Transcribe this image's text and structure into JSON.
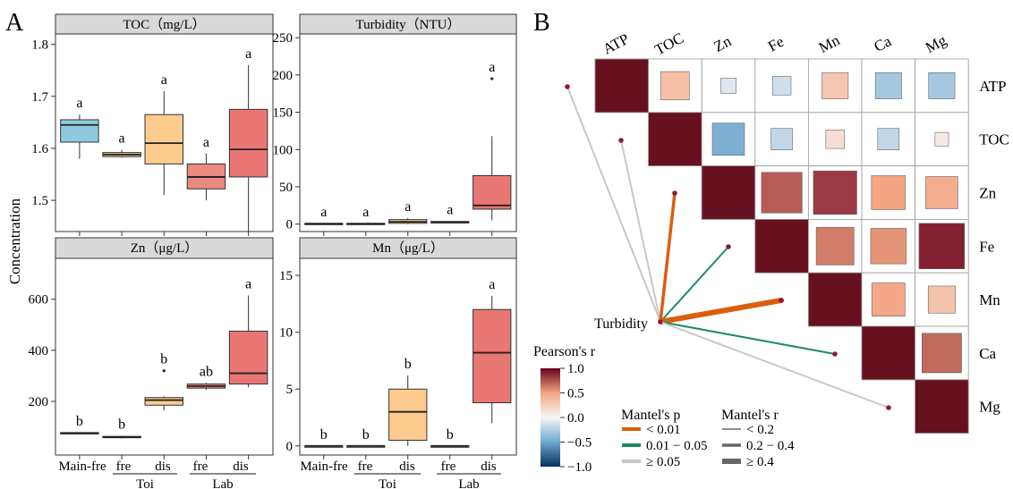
{
  "chart_data": [
    {
      "type": "boxplot",
      "panel": "A",
      "title": "TOC（mg/L）",
      "ylabel": "Concentration",
      "ylim": [
        1.44,
        1.82
      ],
      "yticks": [
        1.5,
        1.6,
        1.7,
        1.8
      ],
      "categories": [
        "Main-fre",
        "Toi fre",
        "Toi dis",
        "Lab fre",
        "Lab dis"
      ],
      "boxes": [
        {
          "min": 1.58,
          "q1": 1.612,
          "median": 1.645,
          "q3": 1.655,
          "max": 1.665,
          "color": "#8fc9df",
          "letter": "a",
          "outliers": []
        },
        {
          "min": 1.582,
          "q1": 1.584,
          "median": 1.588,
          "q3": 1.592,
          "max": 1.597,
          "color": "#f6d398",
          "letter": "a",
          "outliers": []
        },
        {
          "min": 1.51,
          "q1": 1.57,
          "median": 1.61,
          "q3": 1.665,
          "max": 1.71,
          "color": "#fdcb8e",
          "letter": "a",
          "outliers": []
        },
        {
          "min": 1.5,
          "q1": 1.522,
          "median": 1.545,
          "q3": 1.57,
          "max": 1.59,
          "color": "#eb8a80",
          "letter": "a",
          "outliers": []
        },
        {
          "min": 1.44,
          "q1": 1.545,
          "median": 1.598,
          "q3": 1.675,
          "max": 1.76,
          "color": "#e87773",
          "letter": "a",
          "outliers": []
        }
      ]
    },
    {
      "type": "boxplot",
      "panel": "A",
      "title": "Turbidity（NTU）",
      "ylim": [
        -10,
        255
      ],
      "yticks": [
        0,
        50,
        100,
        150,
        200,
        250
      ],
      "categories": [
        "Main-fre",
        "Toi fre",
        "Toi dis",
        "Lab fre",
        "Lab dis"
      ],
      "boxes": [
        {
          "min": 0,
          "q1": 0,
          "median": 0.5,
          "q3": 1,
          "max": 1,
          "color": "#8fc9df",
          "letter": "a",
          "outliers": []
        },
        {
          "min": 0,
          "q1": 0,
          "median": 0.5,
          "q3": 1,
          "max": 1,
          "color": "#f6d398",
          "letter": "a",
          "outliers": []
        },
        {
          "min": 0,
          "q1": 1,
          "median": 3,
          "q3": 6,
          "max": 8,
          "color": "#fdcb8e",
          "letter": "a",
          "outliers": []
        },
        {
          "min": 1,
          "q1": 1.5,
          "median": 2.5,
          "q3": 3.5,
          "max": 4,
          "color": "#eb8a80",
          "letter": "a",
          "outliers": []
        },
        {
          "min": 5,
          "q1": 20,
          "median": 25,
          "q3": 65,
          "max": 118,
          "color": "#e87773",
          "letter": "a",
          "outliers": [
            195
          ]
        }
      ]
    },
    {
      "type": "boxplot",
      "panel": "A",
      "title": "Zn（μg/L）",
      "ylim": [
        -10,
        760
      ],
      "yticks": [
        200,
        400,
        600
      ],
      "categories": [
        "Main-fre",
        "Toi fre",
        "Toi dis",
        "Lab fre",
        "Lab dis"
      ],
      "boxes": [
        {
          "min": 75,
          "q1": 75,
          "median": 75,
          "q3": 78,
          "max": 78,
          "color": "#8fc9df",
          "letter": "b",
          "outliers": []
        },
        {
          "min": 55,
          "q1": 58,
          "median": 60,
          "q3": 63,
          "max": 65,
          "color": "#f6d398",
          "letter": "b",
          "outliers": []
        },
        {
          "min": 165,
          "q1": 185,
          "median": 205,
          "q3": 215,
          "max": 220,
          "color": "#fdcb8e",
          "letter": "b",
          "outliers": [
            320
          ]
        },
        {
          "min": 245,
          "q1": 252,
          "median": 260,
          "q3": 268,
          "max": 272,
          "color": "#eb8a80",
          "letter": "ab",
          "outliers": []
        },
        {
          "min": 255,
          "q1": 268,
          "median": 310,
          "q3": 475,
          "max": 615,
          "color": "#e87773",
          "letter": "a",
          "outliers": []
        }
      ]
    },
    {
      "type": "boxplot",
      "panel": "A",
      "title": "Mn（μg/L）",
      "ylim": [
        -0.8,
        16.5
      ],
      "yticks": [
        0,
        5,
        10,
        15
      ],
      "categories": [
        "Main-fre",
        "Toi fre",
        "Toi dis",
        "Lab fre",
        "Lab dis"
      ],
      "boxes": [
        {
          "min": 0,
          "q1": 0,
          "median": 0,
          "q3": 0,
          "max": 0,
          "color": "#8fc9df",
          "letter": "b",
          "outliers": []
        },
        {
          "min": 0,
          "q1": 0,
          "median": 0,
          "q3": 0,
          "max": 0,
          "color": "#f6d398",
          "letter": "b",
          "outliers": []
        },
        {
          "min": 0,
          "q1": 0.5,
          "median": 3,
          "q3": 5,
          "max": 6.2,
          "color": "#fdcb8e",
          "letter": "b",
          "outliers": []
        },
        {
          "min": 0,
          "q1": 0,
          "median": 0,
          "q3": 0,
          "max": 0,
          "color": "#eb8a80",
          "letter": "b",
          "outliers": []
        },
        {
          "min": 2,
          "q1": 3.8,
          "median": 8.2,
          "q3": 12,
          "max": 13.2,
          "color": "#e87773",
          "letter": "a",
          "outliers": []
        }
      ]
    },
    {
      "type": "heatmap",
      "panel": "B",
      "variables": [
        "ATP",
        "TOC",
        "Zn",
        "Fe",
        "Mn",
        "Ca",
        "Mg"
      ],
      "pearson_upper": [
        {
          "row": "ATP",
          "col": "TOC",
          "r": 0.35
        },
        {
          "row": "ATP",
          "col": "Zn",
          "r": -0.1
        },
        {
          "row": "ATP",
          "col": "Fe",
          "r": -0.15
        },
        {
          "row": "ATP",
          "col": "Mn",
          "r": 0.3
        },
        {
          "row": "ATP",
          "col": "Ca",
          "r": -0.3
        },
        {
          "row": "ATP",
          "col": "Mg",
          "r": -0.3
        },
        {
          "row": "TOC",
          "col": "Zn",
          "r": -0.45
        },
        {
          "row": "TOC",
          "col": "Fe",
          "r": -0.2
        },
        {
          "row": "TOC",
          "col": "Mn",
          "r": 0.15
        },
        {
          "row": "TOC",
          "col": "Ca",
          "r": -0.2
        },
        {
          "row": "TOC",
          "col": "Mg",
          "r": 0.08
        },
        {
          "row": "Zn",
          "col": "Fe",
          "r": 0.72
        },
        {
          "row": "Zn",
          "col": "Mn",
          "r": 0.82
        },
        {
          "row": "Zn",
          "col": "Ca",
          "r": 0.5
        },
        {
          "row": "Zn",
          "col": "Mg",
          "r": 0.45
        },
        {
          "row": "Fe",
          "col": "Mn",
          "r": 0.62
        },
        {
          "row": "Fe",
          "col": "Ca",
          "r": 0.55
        },
        {
          "row": "Fe",
          "col": "Mg",
          "r": 0.9
        },
        {
          "row": "Mn",
          "col": "Ca",
          "r": 0.48
        },
        {
          "row": "Mn",
          "col": "Mg",
          "r": 0.32
        },
        {
          "row": "Ca",
          "col": "Mg",
          "r": 0.68
        }
      ],
      "mantel_source": "Turbidity",
      "mantel_links": [
        {
          "target": "ATP",
          "p": ">=0.05",
          "r": "<0.2"
        },
        {
          "target": "TOC",
          "p": ">=0.05",
          "r": "<0.2"
        },
        {
          "target": "Zn",
          "p": "<0.01",
          "r": "0.2-0.4"
        },
        {
          "target": "Fe",
          "p": "0.01-0.05",
          "r": "<0.2"
        },
        {
          "target": "Mn",
          "p": "<0.01",
          "r": ">=0.4"
        },
        {
          "target": "Ca",
          "p": "0.01-0.05",
          "r": "<0.2"
        },
        {
          "target": "Mg",
          "p": ">=0.05",
          "r": "<0.2"
        }
      ],
      "colorbar": {
        "min": -1,
        "max": 1,
        "ticks": [
          "1.0",
          "0.5",
          "0.0",
          "−0.5",
          "−1.0"
        ]
      }
    }
  ],
  "labels": {
    "panel_a": "A",
    "panel_b": "B",
    "ylabel": "Concentration",
    "xtick_main": "Main-fre",
    "xtick_fre": "fre",
    "xtick_dis": "dis",
    "group_toi": "Toi",
    "group_lab": "Lab",
    "turbidity_node": "Turbidity",
    "pearson_title": "Pearson's r",
    "mantel_p_title": "Mantel's p",
    "mantel_r_title": "Mantel's r",
    "p_legend": [
      "< 0.01",
      "0.01 − 0.05",
      "≥ 0.05"
    ],
    "r_legend": [
      "< 0.2",
      "0.2 − 0.4",
      "≥ 0.4"
    ]
  },
  "colors": {
    "main_fre": "#8fc9df",
    "toi_fre": "#f6d398",
    "toi_dis": "#fdcb8e",
    "lab_fre": "#eb8a80",
    "lab_dis": "#e87773",
    "diag": "#67101f",
    "p_lt_001": "#d95f0e",
    "p_001_005": "#1b8a6b",
    "p_ge_005": "#c8c8c8"
  }
}
